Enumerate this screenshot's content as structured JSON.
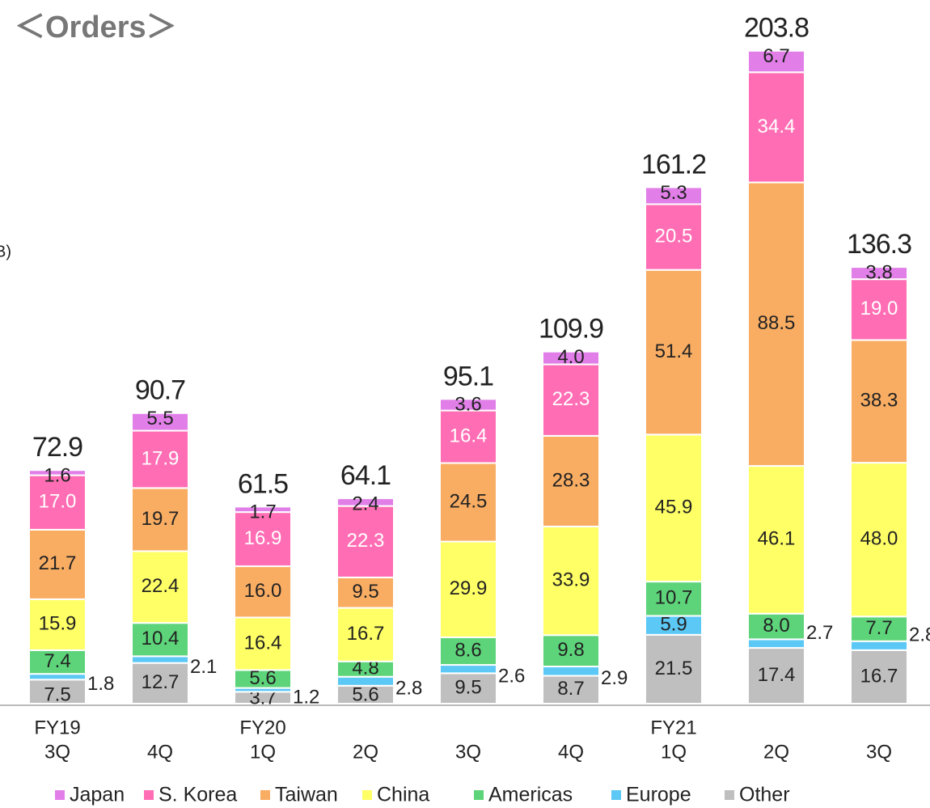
{
  "chart_data": {
    "type": "stacked_bar",
    "title": "＜Orders＞",
    "unit_label": "B)",
    "categories": [
      "3Q",
      "4Q",
      "1Q",
      "2Q",
      "3Q",
      "4Q",
      "1Q",
      "2Q",
      "3Q"
    ],
    "year_labels": [
      "FY19",
      null,
      "FY20",
      null,
      null,
      null,
      "FY21",
      null,
      null
    ],
    "ylim": [
      0,
      205
    ],
    "series": [
      {
        "name": "Other",
        "color": "#bfbfbf",
        "values": [
          7.5,
          12.7,
          3.7,
          5.6,
          9.5,
          8.7,
          21.5,
          17.4,
          16.7
        ]
      },
      {
        "name": "Europe",
        "color": "#5bc8f5",
        "values": [
          1.8,
          2.1,
          1.2,
          2.8,
          2.6,
          2.9,
          5.9,
          2.7,
          2.8
        ]
      },
      {
        "name": "Americas",
        "color": "#5dd47a",
        "values": [
          7.4,
          10.4,
          5.6,
          4.8,
          8.6,
          9.8,
          10.7,
          8.0,
          7.7
        ],
        "value_labels": [
          "7.4",
          "10.4",
          "5.6",
          "4.8",
          "8.6",
          "9.8",
          "10.7",
          "8.0",
          "7.7"
        ]
      },
      {
        "name": "China",
        "color": "#ffff66",
        "values": [
          15.9,
          22.4,
          16.4,
          16.7,
          29.9,
          33.9,
          45.9,
          46.1,
          48.0
        ],
        "value_labels": [
          "15.9",
          "22.4",
          "16.4",
          "16.7",
          "29.9",
          "33.9",
          "45.9",
          "46.1",
          "48.0"
        ]
      },
      {
        "name": "Taiwan",
        "color": "#f9ad63",
        "values": [
          21.7,
          19.7,
          16.0,
          9.5,
          24.5,
          28.3,
          51.4,
          88.5,
          38.3
        ],
        "value_labels": [
          "21.7",
          "19.7",
          "16.0",
          "9.5",
          "24.5",
          "28.3",
          "51.4",
          "88.5",
          "38.3"
        ]
      },
      {
        "name": "S. Korea",
        "color": "#ff6eb4",
        "values": [
          17.0,
          17.9,
          16.9,
          22.3,
          16.4,
          22.3,
          20.5,
          34.4,
          19.0
        ],
        "value_labels": [
          "17.0",
          "17.9",
          "16.9",
          "22.3",
          "16.4",
          "22.3",
          "20.5",
          "34.4",
          "19.0"
        ]
      },
      {
        "name": "Japan",
        "color": "#e17ee8",
        "values": [
          1.6,
          5.5,
          1.7,
          2.4,
          3.6,
          4.0,
          5.3,
          6.7,
          3.8
        ],
        "value_labels": [
          "1.6",
          "5.5",
          "1.7",
          "2.4",
          "3.6",
          "4.0",
          "5.3",
          "6.7",
          "3.8"
        ]
      }
    ],
    "totals": [
      72.9,
      90.7,
      61.5,
      64.1,
      95.1,
      109.9,
      161.2,
      203.8,
      136.3
    ]
  }
}
